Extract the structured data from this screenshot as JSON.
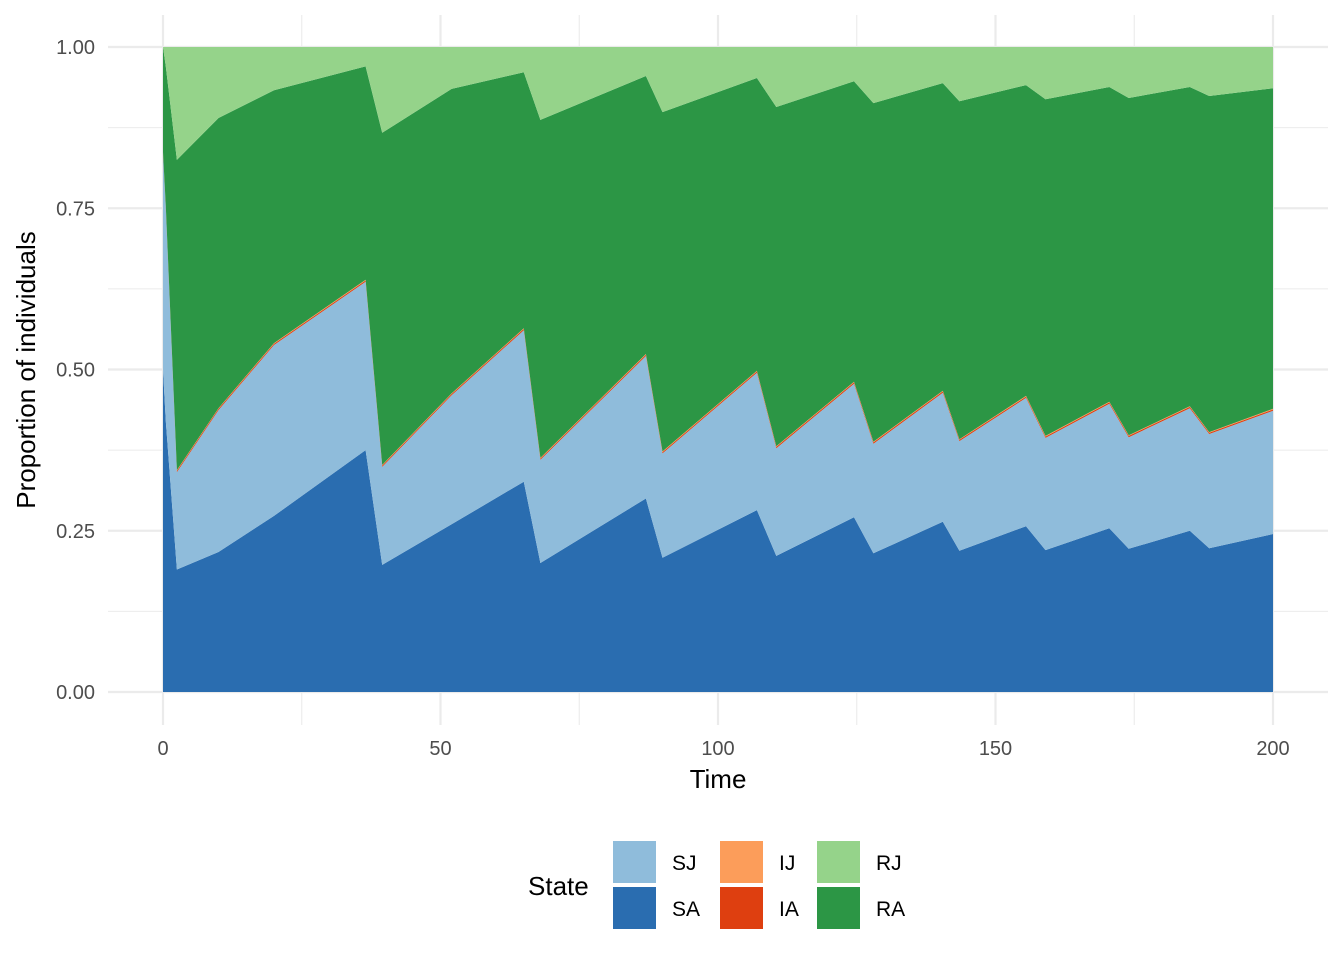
{
  "chart_data": {
    "type": "area",
    "stacked": true,
    "title": "",
    "xlabel": "Time",
    "ylabel": "Proportion of individuals",
    "xlim": [
      0,
      200
    ],
    "ylim": [
      0,
      1
    ],
    "x_ticks": [
      "0",
      "50",
      "100",
      "150",
      "200"
    ],
    "y_ticks": [
      "0.00",
      "0.25",
      "0.50",
      "0.75",
      "1.00"
    ],
    "x_tick_values": [
      0,
      50,
      100,
      150,
      200
    ],
    "y_tick_values": [
      0,
      0.25,
      0.5,
      0.75,
      1
    ],
    "grid": true,
    "legend": {
      "title": "State",
      "position": "bottom"
    },
    "x": [
      0,
      0.5,
      2.5,
      10,
      20,
      36.5,
      39.5,
      52,
      65,
      68,
      87,
      90,
      107,
      110.5,
      124.5,
      128,
      140.5,
      143.5,
      155.5,
      159,
      170.5,
      174,
      185,
      188.5,
      200
    ],
    "stack_order_bottom_to_top": [
      "SA",
      "SJ",
      "IA",
      "IJ",
      "RA",
      "RJ"
    ],
    "series": [
      {
        "name": "SJ",
        "color": "#8fbcdb",
        "values": [
          0.334,
          0.33,
          0.151,
          0.22,
          0.265,
          0.261,
          0.152,
          0.2,
          0.235,
          0.16,
          0.221,
          0.162,
          0.213,
          0.167,
          0.207,
          0.17,
          0.2,
          0.17,
          0.199,
          0.174,
          0.193,
          0.173,
          0.19,
          0.177,
          0.191
        ]
      },
      {
        "name": "SA",
        "color": "#2a6db0",
        "values": [
          0.5,
          0.42,
          0.19,
          0.217,
          0.273,
          0.375,
          0.197,
          0.26,
          0.326,
          0.2,
          0.3,
          0.208,
          0.282,
          0.211,
          0.271,
          0.215,
          0.264,
          0.219,
          0.257,
          0.22,
          0.254,
          0.222,
          0.25,
          0.223,
          0.245
        ]
      },
      {
        "name": "IJ",
        "color": "#fc9d5a",
        "values": [
          0.001,
          0.001,
          0.001,
          0.001,
          0.001,
          0.001,
          0.001,
          0.001,
          0.001,
          0.001,
          0.001,
          0.001,
          0.001,
          0.001,
          0.001,
          0.001,
          0.001,
          0.001,
          0.001,
          0.001,
          0.001,
          0.001,
          0.001,
          0.001,
          0.001
        ]
      },
      {
        "name": "IA",
        "color": "#de3f10",
        "values": [
          0.002,
          0.002,
          0.002,
          0.002,
          0.002,
          0.002,
          0.002,
          0.002,
          0.002,
          0.002,
          0.002,
          0.002,
          0.002,
          0.002,
          0.002,
          0.002,
          0.002,
          0.002,
          0.002,
          0.002,
          0.002,
          0.002,
          0.002,
          0.002,
          0.002
        ]
      },
      {
        "name": "RJ",
        "color": "#95d38a",
        "values": [
          0,
          0.03,
          0.175,
          0.11,
          0.067,
          0.03,
          0.133,
          0.065,
          0.039,
          0.113,
          0.045,
          0.101,
          0.048,
          0.093,
          0.053,
          0.087,
          0.056,
          0.084,
          0.059,
          0.081,
          0.062,
          0.079,
          0.062,
          0.076,
          0.064
        ]
      },
      {
        "name": "RA",
        "color": "#2c9645",
        "values": [
          0.163,
          0.217,
          0.481,
          0.45,
          0.392,
          0.331,
          0.515,
          0.472,
          0.397,
          0.524,
          0.431,
          0.526,
          0.454,
          0.526,
          0.466,
          0.525,
          0.477,
          0.524,
          0.482,
          0.522,
          0.488,
          0.523,
          0.495,
          0.521,
          0.497
        ]
      }
    ]
  }
}
